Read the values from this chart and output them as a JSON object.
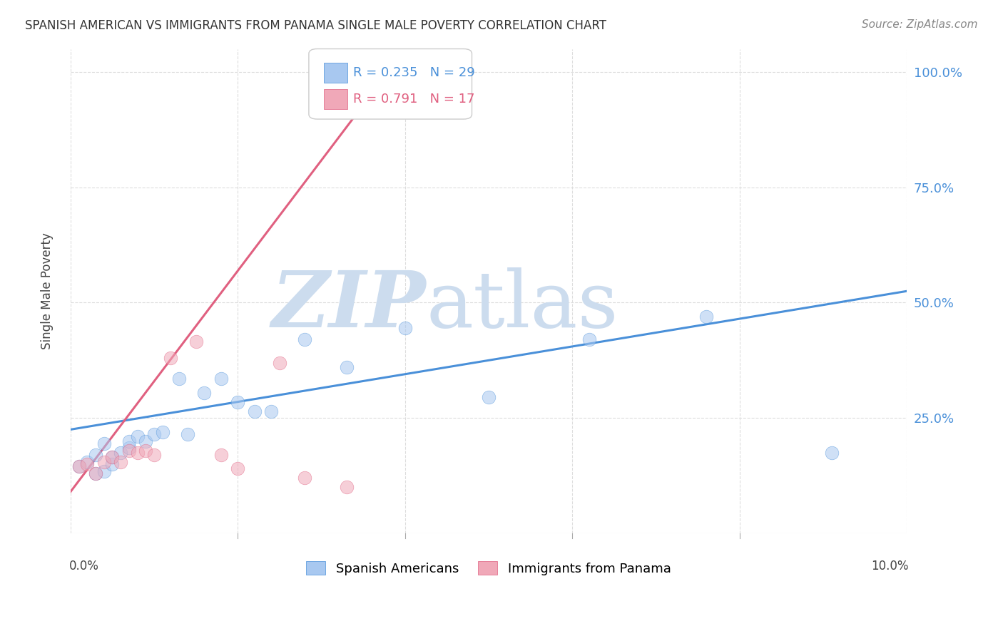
{
  "title": "SPANISH AMERICAN VS IMMIGRANTS FROM PANAMA SINGLE MALE POVERTY CORRELATION CHART",
  "source": "Source: ZipAtlas.com",
  "ylabel": "Single Male Poverty",
  "legend_label1": "Spanish Americans",
  "legend_label2": "Immigrants from Panama",
  "r1": "0.235",
  "n1": "29",
  "r2": "0.791",
  "n2": "17",
  "color_blue": "#a8c8f0",
  "color_pink": "#f0a8b8",
  "color_blue_dark": "#4a90d9",
  "color_pink_dark": "#e06080",
  "color_line_blue": "#4a90d9",
  "color_line_pink": "#e06080",
  "watermark_zip_color": "#ccdcee",
  "watermark_atlas_color": "#ccdcee",
  "grid_color": "#dddddd",
  "xlim": [
    0.0,
    0.1
  ],
  "ylim": [
    0.0,
    1.05
  ],
  "ytick_pos": [
    0.25,
    0.5,
    0.75,
    1.0
  ],
  "ytick_labels": [
    "25.0%",
    "50.0%",
    "75.0%",
    "100.0%"
  ],
  "sa_x": [
    0.001,
    0.002,
    0.003,
    0.003,
    0.004,
    0.004,
    0.005,
    0.005,
    0.006,
    0.007,
    0.007,
    0.008,
    0.009,
    0.01,
    0.011,
    0.013,
    0.014,
    0.016,
    0.018,
    0.02,
    0.022,
    0.024,
    0.028,
    0.033,
    0.04,
    0.05,
    0.062,
    0.076,
    0.091
  ],
  "sa_y": [
    0.145,
    0.155,
    0.13,
    0.17,
    0.135,
    0.195,
    0.15,
    0.165,
    0.175,
    0.185,
    0.2,
    0.21,
    0.2,
    0.215,
    0.22,
    0.335,
    0.215,
    0.305,
    0.335,
    0.285,
    0.265,
    0.265,
    0.42,
    0.36,
    0.445,
    0.295,
    0.42,
    0.47,
    0.175
  ],
  "pan_x": [
    0.001,
    0.002,
    0.003,
    0.004,
    0.005,
    0.006,
    0.007,
    0.008,
    0.009,
    0.01,
    0.012,
    0.015,
    0.018,
    0.02,
    0.025,
    0.028,
    0.033
  ],
  "pan_y": [
    0.145,
    0.15,
    0.13,
    0.155,
    0.165,
    0.155,
    0.18,
    0.175,
    0.18,
    0.17,
    0.38,
    0.415,
    0.17,
    0.14,
    0.37,
    0.12,
    0.1
  ],
  "scatter_size": 180,
  "scatter_alpha": 0.55,
  "line_blue_x0": 0.0,
  "line_blue_x1": 0.1,
  "line_blue_y0": 0.225,
  "line_blue_y1": 0.525,
  "line_pink_x0": 0.0,
  "line_pink_x1": 0.038,
  "line_pink_y0": 0.09,
  "line_pink_y1": 1.0
}
